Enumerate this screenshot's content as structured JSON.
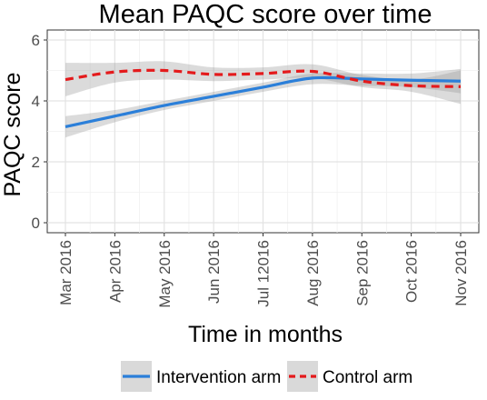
{
  "chart_data": {
    "type": "line",
    "title": "Mean PAQC score over time",
    "xlabel": "Time in months",
    "ylabel": "PAQC score",
    "categories": [
      "Mar 2016",
      "Apr 2016",
      "May 2016",
      "Jun 2016",
      "Jul 12016",
      "Aug 2016",
      "Sep 2016",
      "Oct 2016",
      "Nov 2016"
    ],
    "ylim": [
      0,
      6
    ],
    "yticks": [
      0,
      2,
      4,
      6
    ],
    "grid": true,
    "legend_position": "bottom",
    "series": [
      {
        "name": "Intervention arm",
        "color": "#2b7fd9",
        "linestyle": "solid",
        "values": [
          3.15,
          3.5,
          3.85,
          4.15,
          4.45,
          4.75,
          4.72,
          4.68,
          4.65
        ],
        "ci_lower": [
          2.8,
          3.3,
          3.7,
          4.0,
          4.3,
          4.55,
          4.5,
          4.45,
          4.25
        ],
        "ci_upper": [
          3.5,
          3.7,
          4.0,
          4.3,
          4.6,
          4.9,
          4.9,
          4.9,
          5.05
        ]
      },
      {
        "name": "Control arm",
        "color": "#e41a1c",
        "linestyle": "dashed",
        "values": [
          4.7,
          4.95,
          5.0,
          4.87,
          4.9,
          4.97,
          4.65,
          4.5,
          4.47
        ],
        "ci_lower": [
          4.15,
          4.6,
          4.7,
          4.65,
          4.7,
          4.75,
          4.45,
          4.3,
          3.9
        ],
        "ci_upper": [
          5.25,
          5.25,
          5.3,
          5.1,
          5.1,
          5.2,
          4.85,
          4.7,
          5.0
        ]
      }
    ]
  }
}
